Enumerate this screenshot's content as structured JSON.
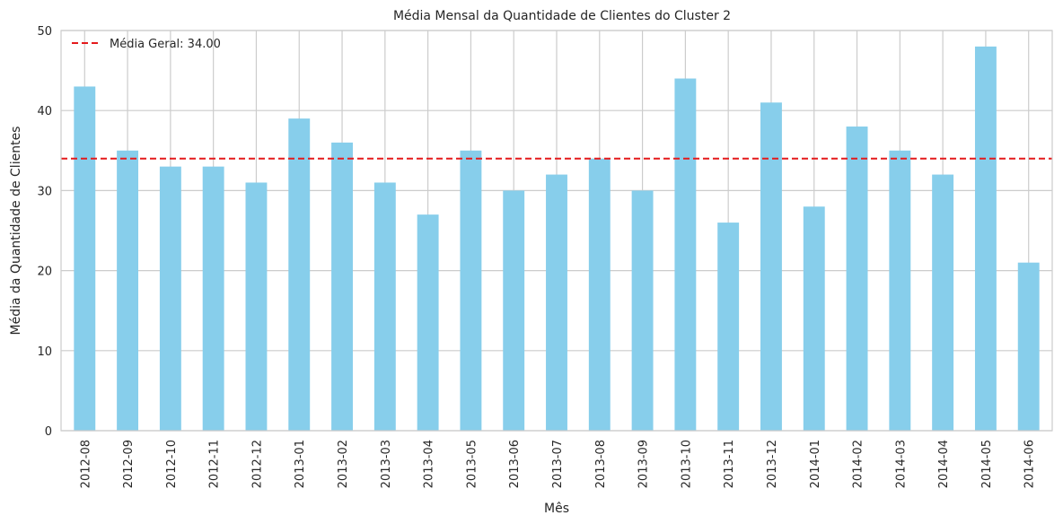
{
  "chart_data": {
    "type": "bar",
    "title": "Média Mensal da Quantidade de Clientes do Cluster 2",
    "xlabel": "Mês",
    "ylabel": "Média da Quantidade de Clientes",
    "categories": [
      "2012-08",
      "2012-09",
      "2012-10",
      "2012-11",
      "2012-12",
      "2013-01",
      "2013-02",
      "2013-03",
      "2013-04",
      "2013-05",
      "2013-06",
      "2013-07",
      "2013-08",
      "2013-09",
      "2013-10",
      "2013-11",
      "2013-12",
      "2014-01",
      "2014-02",
      "2014-03",
      "2014-04",
      "2014-05",
      "2014-06"
    ],
    "values": [
      43,
      35,
      33,
      33,
      31,
      39,
      36,
      31,
      27,
      35,
      30,
      32,
      34,
      30,
      44,
      26,
      41,
      28,
      38,
      35,
      32,
      48,
      21
    ],
    "ylim": [
      0,
      50
    ],
    "yticks": [
      "0",
      "10",
      "20",
      "30",
      "40",
      "50"
    ],
    "grid": true,
    "bar_color": "#87CEEB",
    "reference_line": {
      "value": 34.0,
      "label": "Média Geral: 34.00",
      "color": "#e41a1c",
      "style": "dashed"
    },
    "legend_position": "top-left"
  }
}
